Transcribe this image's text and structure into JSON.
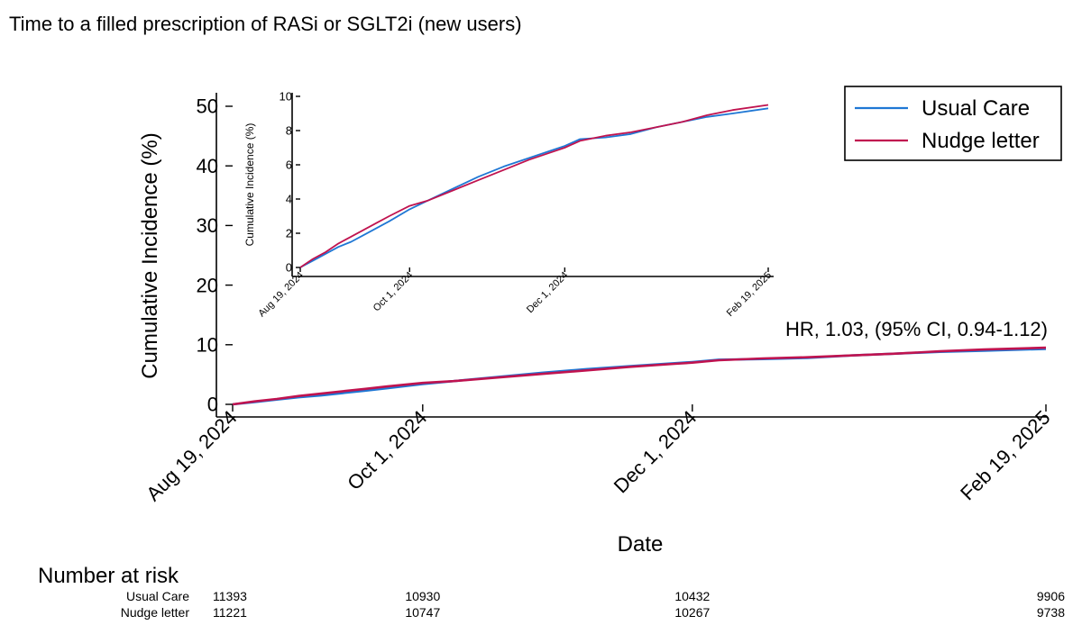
{
  "title": "Time to a filled prescription of RASi or SGLT2i (new users)",
  "colors": {
    "usual_care": "#1f77d4",
    "nudge_letter": "#c0134f",
    "axis": "#000000",
    "background": "#ffffff"
  },
  "chart_data": [
    {
      "id": "main",
      "type": "line",
      "title": "Time to a filled prescription of RASi or SGLT2i (new users)",
      "xlabel": "Date",
      "ylabel": "Cumulative Incidence (%)",
      "x_unit": "days since Aug 19, 2024",
      "xlim": [
        0,
        184
      ],
      "ylim": [
        0,
        50
      ],
      "yticks": [
        0,
        10,
        20,
        30,
        40,
        50
      ],
      "xticks": [
        {
          "value": 0,
          "label": "Aug 19, 2024"
        },
        {
          "value": 43,
          "label": "Oct 1, 2024"
        },
        {
          "value": 104,
          "label": "Dec 1, 2024"
        },
        {
          "value": 184,
          "label": "Feb 19, 2025"
        }
      ],
      "legend": {
        "placement": "top-right",
        "entries": [
          "Usual Care",
          "Nudge letter"
        ]
      },
      "annotation": "HR, 1.03, (95% CI, 0.94-1.12)",
      "series": [
        {
          "name": "Usual Care",
          "x": [
            0,
            5,
            10,
            15,
            20,
            25,
            30,
            35,
            43,
            50,
            60,
            70,
            80,
            90,
            100,
            104,
            110,
            120,
            130,
            140,
            150,
            160,
            170,
            184
          ],
          "y": [
            0,
            0.4,
            0.8,
            1.2,
            1.5,
            1.9,
            2.3,
            2.7,
            3.4,
            3.9,
            4.6,
            5.3,
            5.9,
            6.4,
            6.9,
            7.1,
            7.5,
            7.6,
            7.8,
            8.2,
            8.5,
            8.8,
            9.0,
            9.3
          ]
        },
        {
          "name": "Nudge letter",
          "x": [
            0,
            5,
            10,
            15,
            20,
            25,
            30,
            35,
            43,
            50,
            60,
            70,
            80,
            90,
            100,
            104,
            110,
            120,
            130,
            140,
            150,
            160,
            170,
            184
          ],
          "y": [
            0,
            0.5,
            0.9,
            1.4,
            1.8,
            2.2,
            2.6,
            3.0,
            3.6,
            3.9,
            4.5,
            5.1,
            5.7,
            6.3,
            6.8,
            7.0,
            7.4,
            7.7,
            7.9,
            8.2,
            8.5,
            8.9,
            9.2,
            9.5
          ]
        }
      ]
    },
    {
      "id": "inset",
      "type": "line",
      "xlabel": "",
      "ylabel": "Cumulative Incidence (%)",
      "xlim": [
        0,
        184
      ],
      "ylim": [
        0,
        10
      ],
      "yticks": [
        0,
        2,
        4,
        6,
        8,
        10
      ],
      "xticks": [
        {
          "value": 0,
          "label": "Aug 19, 2024"
        },
        {
          "value": 43,
          "label": "Oct 1, 2024"
        },
        {
          "value": 104,
          "label": "Dec 1, 2024"
        },
        {
          "value": 184,
          "label": "Feb 19, 2025"
        }
      ],
      "series_ref": "main"
    }
  ],
  "risk_table": {
    "title": "Number at risk",
    "rows": [
      {
        "label": "Usual Care",
        "values": [
          "11393",
          "10930",
          "10432",
          "9906"
        ]
      },
      {
        "label": "Nudge letter",
        "values": [
          "11221",
          "10747",
          "10267",
          "9738"
        ]
      }
    ]
  }
}
